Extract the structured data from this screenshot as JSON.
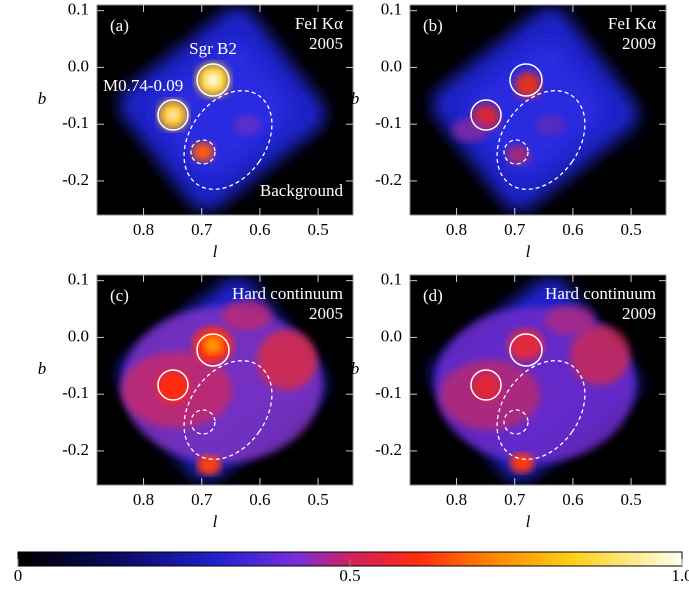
{
  "chart_data": [
    {
      "type": "image",
      "label": "(a)",
      "title": "FeI Kα",
      "subtitle": "2005",
      "annotations": [
        "Sgr B2",
        "M0.74-0.09",
        "Background"
      ],
      "xlabel": "l",
      "ylabel": "b",
      "xlim": [
        0.88,
        0.44
      ],
      "ylim": [
        -0.26,
        0.11
      ],
      "xticks": [
        0.8,
        0.7,
        0.6,
        0.5
      ],
      "yticks": [
        0.1,
        {
          "value": 0,
          "label": "0.0"
        },
        -0.1,
        -0.2
      ]
    },
    {
      "type": "image",
      "label": "(b)",
      "title": "FeI Kα",
      "subtitle": "2009",
      "xlabel": "l",
      "ylabel": "b",
      "xlim": [
        0.88,
        0.44
      ],
      "ylim": [
        -0.26,
        0.11
      ],
      "xticks": [
        0.8,
        0.7,
        0.6,
        0.5
      ],
      "yticks": [
        0.1,
        {
          "value": 0,
          "label": "0.0"
        },
        -0.1,
        -0.2
      ]
    },
    {
      "type": "image",
      "label": "(c)",
      "title": "Hard continuum",
      "subtitle": "2005",
      "xlabel": "l",
      "ylabel": "b",
      "xlim": [
        0.88,
        0.44
      ],
      "ylim": [
        -0.26,
        0.11
      ],
      "xticks": [
        0.8,
        0.7,
        0.6,
        0.5
      ],
      "yticks": [
        0.1,
        {
          "value": 0,
          "label": "0.0"
        },
        -0.1,
        -0.2
      ]
    },
    {
      "type": "image",
      "label": "(d)",
      "title": "Hard continuum",
      "subtitle": "2009",
      "xlabel": "l",
      "ylabel": "b",
      "xlim": [
        0.88,
        0.44
      ],
      "ylim": [
        -0.26,
        0.11
      ],
      "xticks": [
        0.8,
        0.7,
        0.6,
        0.5
      ],
      "yticks": [
        0.1,
        {
          "value": 0,
          "label": "0.0"
        },
        -0.1,
        -0.2
      ]
    }
  ],
  "colorbar": {
    "lim": [
      0,
      1
    ],
    "ticks": [
      0,
      0.5,
      {
        "value": 1,
        "label": "1.0"
      }
    ]
  }
}
